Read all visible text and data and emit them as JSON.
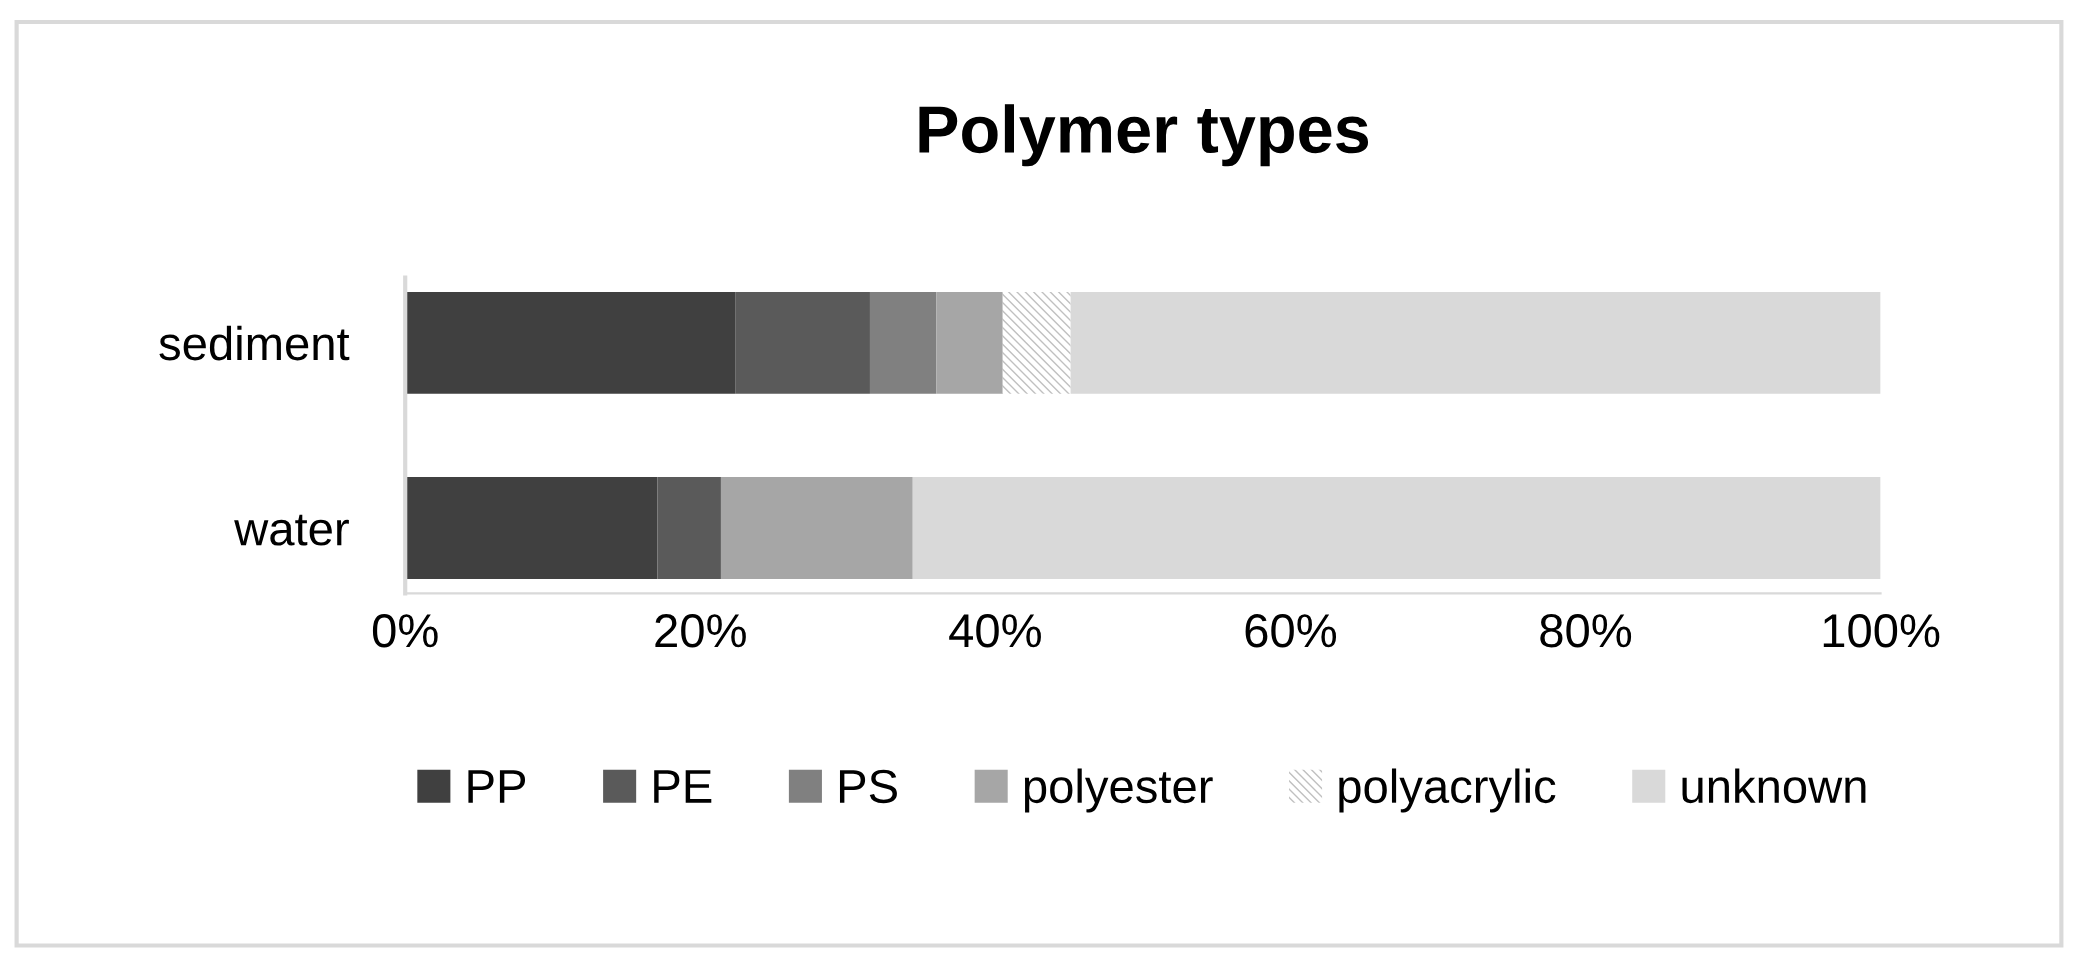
{
  "chart_data": {
    "type": "bar",
    "orientation": "horizontal",
    "stacked": true,
    "title": "Polymer types",
    "categories": [
      "sediment",
      "water"
    ],
    "series": [
      {
        "name": "PP",
        "color": "#404040",
        "values": [
          22.4,
          17.1
        ]
      },
      {
        "name": "PE",
        "color": "#5a5a5a",
        "values": [
          9.1,
          4.3
        ]
      },
      {
        "name": "PS",
        "color": "#808080",
        "values": [
          4.5,
          0
        ]
      },
      {
        "name": "polyester",
        "color": "#a6a6a6",
        "values": [
          4.5,
          13.0
        ]
      },
      {
        "name": "polyacrylic",
        "color": "#c0c0c0",
        "values": [
          4.6,
          0
        ]
      },
      {
        "name": "unknown",
        "color": "#d9d9d9",
        "values": [
          54.9,
          65.6
        ]
      }
    ],
    "xlim": [
      0,
      100
    ],
    "xticks": [
      {
        "value": 0,
        "label": "0%"
      },
      {
        "value": 20,
        "label": "20%"
      },
      {
        "value": 40,
        "label": "40%"
      },
      {
        "value": 60,
        "label": "60%"
      },
      {
        "value": 80,
        "label": "80%"
      },
      {
        "value": 100,
        "label": "100%"
      }
    ],
    "grid": false,
    "legend": "bottom"
  }
}
